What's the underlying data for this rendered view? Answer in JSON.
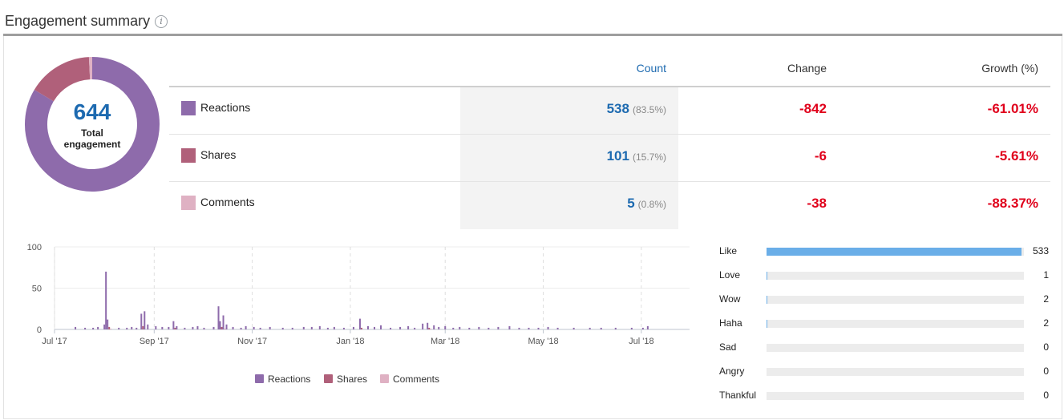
{
  "header": {
    "title": "Engagement summary",
    "info_icon": "info-icon"
  },
  "summary": {
    "total_value": "644",
    "total_label": "Total engagement"
  },
  "table": {
    "headers": {
      "count": "Count",
      "change": "Change",
      "growth": "Growth (%)"
    },
    "rows": [
      {
        "label": "Reactions",
        "count": "538",
        "pct": "(83.5%)",
        "change": "-842",
        "growth": "-61.01%",
        "color": "#8e6bab"
      },
      {
        "label": "Shares",
        "count": "101",
        "pct": "(15.7%)",
        "change": "-6",
        "growth": "-5.61%",
        "color": "#b0607a"
      },
      {
        "label": "Comments",
        "count": "5",
        "pct": "(0.8%)",
        "change": "-38",
        "growth": "-88.37%",
        "color": "#dfb1c3"
      }
    ]
  },
  "chart_data": [
    {
      "type": "pie",
      "labels": [
        "Reactions",
        "Shares",
        "Comments"
      ],
      "values": [
        538,
        101,
        5
      ],
      "colors": [
        "#8e6bab",
        "#b0607a",
        "#dfb1c3"
      ]
    },
    {
      "type": "bar",
      "x_ticks": [
        "Jul '17",
        "Sep '17",
        "Nov '17",
        "Jan '18",
        "Mar '18",
        "May '18",
        "Jul '18"
      ],
      "y_ticks": [
        "100",
        "50",
        "0"
      ],
      "ylim": [
        0,
        100
      ],
      "legend": "bottom",
      "series": [
        {
          "name": "Reactions",
          "color": "#8e6bab",
          "points": [
            [
              "2017-07-14",
              3
            ],
            [
              "2017-07-20",
              2
            ],
            [
              "2017-07-25",
              2
            ],
            [
              "2017-07-28",
              3
            ],
            [
              "2017-08-01",
              6
            ],
            [
              "2017-08-02",
              70
            ],
            [
              "2017-08-03",
              12
            ],
            [
              "2017-08-10",
              2
            ],
            [
              "2017-08-15",
              2
            ],
            [
              "2017-08-18",
              3
            ],
            [
              "2017-08-21",
              2
            ],
            [
              "2017-08-24",
              19
            ],
            [
              "2017-08-26",
              22
            ],
            [
              "2017-08-28",
              6
            ],
            [
              "2017-09-02",
              4
            ],
            [
              "2017-09-06",
              3
            ],
            [
              "2017-09-10",
              3
            ],
            [
              "2017-09-13",
              10
            ],
            [
              "2017-09-15",
              4
            ],
            [
              "2017-09-20",
              2
            ],
            [
              "2017-09-25",
              3
            ],
            [
              "2017-09-28",
              4
            ],
            [
              "2017-10-02",
              2
            ],
            [
              "2017-10-08",
              3
            ],
            [
              "2017-10-11",
              28
            ],
            [
              "2017-10-12",
              10
            ],
            [
              "2017-10-14",
              17
            ],
            [
              "2017-10-16",
              6
            ],
            [
              "2017-10-20",
              3
            ],
            [
              "2017-10-25",
              2
            ],
            [
              "2017-10-28",
              4
            ],
            [
              "2017-11-02",
              3
            ],
            [
              "2017-11-06",
              2
            ],
            [
              "2017-11-12",
              3
            ],
            [
              "2017-11-20",
              2
            ],
            [
              "2017-11-26",
              2
            ],
            [
              "2017-12-03",
              3
            ],
            [
              "2017-12-08",
              3
            ],
            [
              "2017-12-13",
              4
            ],
            [
              "2017-12-18",
              2
            ],
            [
              "2017-12-22",
              3
            ],
            [
              "2017-12-28",
              2
            ],
            [
              "2018-01-03",
              3
            ],
            [
              "2018-01-07",
              13
            ],
            [
              "2018-01-12",
              4
            ],
            [
              "2018-01-16",
              3
            ],
            [
              "2018-01-20",
              5
            ],
            [
              "2018-01-26",
              2
            ],
            [
              "2018-02-01",
              3
            ],
            [
              "2018-02-06",
              4
            ],
            [
              "2018-02-10",
              2
            ],
            [
              "2018-02-15",
              7
            ],
            [
              "2018-02-18",
              8
            ],
            [
              "2018-02-22",
              5
            ],
            [
              "2018-02-25",
              3
            ],
            [
              "2018-03-01",
              4
            ],
            [
              "2018-03-06",
              2
            ],
            [
              "2018-03-10",
              3
            ],
            [
              "2018-03-16",
              2
            ],
            [
              "2018-03-22",
              3
            ],
            [
              "2018-03-28",
              2
            ],
            [
              "2018-04-03",
              3
            ],
            [
              "2018-04-10",
              4
            ],
            [
              "2018-04-16",
              2
            ],
            [
              "2018-04-22",
              2
            ],
            [
              "2018-04-28",
              2
            ],
            [
              "2018-05-04",
              3
            ],
            [
              "2018-05-10",
              2
            ],
            [
              "2018-05-20",
              2
            ],
            [
              "2018-05-30",
              2
            ],
            [
              "2018-06-06",
              2
            ],
            [
              "2018-06-15",
              2
            ],
            [
              "2018-06-25",
              2
            ],
            [
              "2018-07-02",
              2
            ],
            [
              "2018-07-05",
              4
            ]
          ]
        },
        {
          "name": "Shares",
          "color": "#b0607a",
          "points": [
            [
              "2017-08-04",
              3
            ],
            [
              "2017-08-25",
              4
            ],
            [
              "2017-09-14",
              2
            ],
            [
              "2017-10-13",
              3
            ],
            [
              "2018-01-08",
              2
            ],
            [
              "2018-02-19",
              2
            ]
          ]
        },
        {
          "name": "Comments",
          "color": "#dfb1c3",
          "points": [
            [
              "2017-08-05",
              1
            ],
            [
              "2017-10-15",
              1
            ],
            [
              "2018-02-20",
              1
            ]
          ]
        }
      ]
    },
    {
      "type": "bar",
      "orientation": "horizontal",
      "categories": [
        "Like",
        "Love",
        "Wow",
        "Haha",
        "Sad",
        "Angry",
        "Thankful"
      ],
      "values": [
        533,
        1,
        2,
        2,
        0,
        0,
        0
      ],
      "max": 533,
      "color": "#6aaee8"
    }
  ]
}
